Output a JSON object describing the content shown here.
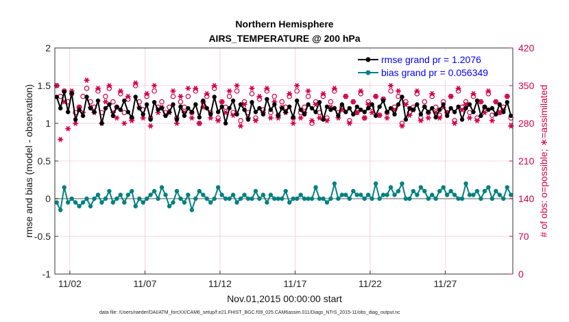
{
  "chart_data": {
    "type": "line",
    "title": "Northern Hemisphere",
    "subtitle": "AIRS_TEMPERATURE @ 200 hPa",
    "xlabel": "Nov.01,2015 00:00:00 start",
    "ylabel": "rmse and bias (model - observation)",
    "ylabel_right": "# of obs: o=possible; ∗=assimilated",
    "ylim": [
      -1,
      2
    ],
    "ylim_right": [
      0,
      420
    ],
    "xlim": [
      0,
      30.5
    ],
    "yticks": [
      "-1",
      "-0.5",
      "0",
      "0.5",
      "1",
      "1.5",
      "2"
    ],
    "yticks_right": [
      "0",
      "70",
      "140",
      "210",
      "280",
      "350",
      "420"
    ],
    "xticks": [
      {
        "value": 1,
        "label": "11/02"
      },
      {
        "value": 6,
        "label": "11/07"
      },
      {
        "value": 11,
        "label": "11/12"
      },
      {
        "value": 16,
        "label": "11/17"
      },
      {
        "value": 21,
        "label": "11/22"
      },
      {
        "value": 26,
        "label": "11/27"
      }
    ],
    "grid": true,
    "legend_position": "top-right",
    "x_step_days": 0.25,
    "series": [
      {
        "name": "rmse grand pr = 1.2076",
        "color": "#000000",
        "marker": "circle",
        "axis": "left",
        "values": [
          1.35,
          1.2,
          1.42,
          1.15,
          1.4,
          1.05,
          1.18,
          1.1,
          1.35,
          1.2,
          1.15,
          1.3,
          1.0,
          1.2,
          1.25,
          1.1,
          1.22,
          1.18,
          1.3,
          1.15,
          1.08,
          1.35,
          1.2,
          1.12,
          1.25,
          1.05,
          1.28,
          1.18,
          1.2,
          1.1,
          1.15,
          1.25,
          1.05,
          1.22,
          1.1,
          1.2,
          1.15,
          1.25,
          1.08,
          1.3,
          1.2,
          1.12,
          1.35,
          1.15,
          1.22,
          1.0,
          1.2,
          1.3,
          1.12,
          1.25,
          1.18,
          1.05,
          1.28,
          1.15,
          1.2,
          1.12,
          1.32,
          1.18,
          1.25,
          1.1,
          1.2,
          1.15,
          1.22,
          1.08,
          1.3,
          1.18,
          1.12,
          1.25,
          1.2,
          1.15,
          1.28,
          1.05,
          1.22,
          1.18,
          1.2,
          1.1,
          1.25,
          1.15,
          1.2,
          1.12,
          1.22,
          1.18,
          1.15,
          1.2,
          1.25,
          1.1,
          1.22,
          1.3,
          1.15,
          1.2,
          1.12,
          1.25,
          1.35,
          1.05,
          1.2,
          1.18,
          1.25,
          1.12,
          1.22,
          1.15,
          1.2,
          1.08,
          1.18,
          1.25,
          1.1,
          1.2,
          1.15,
          1.22,
          1.05,
          1.2,
          1.25,
          1.15,
          1.3,
          1.1,
          1.22,
          1.18,
          1.2,
          1.12,
          1.25,
          1.15,
          1.28,
          1.1,
          1.2,
          1.18,
          1.35,
          1.12,
          1.22,
          1.15,
          1.25,
          1.1,
          1.2,
          1.3,
          1.15,
          1.22,
          1.38,
          1.25,
          1.3,
          1.2,
          1.35,
          1.15,
          1.28,
          1.4,
          1.22,
          1.48,
          1.2,
          1.35,
          1.25,
          1.3,
          1.15,
          1.4,
          1.22,
          1.28,
          1.32,
          1.2,
          1.25,
          1.1,
          1.3,
          1.22,
          1.28,
          1.35,
          1.05,
          1.2,
          1.15,
          1.25,
          1.1,
          1.28,
          1.22,
          1.3,
          1.18,
          1.25,
          1.32,
          1.15,
          1.22,
          1.0,
          1.2,
          1.05,
          1.25,
          1.15,
          1.2,
          1.12,
          1.22,
          1.18,
          1.25,
          1.2,
          1.15,
          1.22,
          1.18,
          1.25,
          1.2,
          1.22,
          1.25,
          1.24
        ]
      },
      {
        "name": "bias grand pr = 0.056349",
        "color": "#008080",
        "marker": "circle",
        "axis": "left",
        "values": [
          -0.05,
          -0.15,
          0.15,
          -0.05,
          0.0,
          -0.05,
          -0.1,
          -0.05,
          0.0,
          -0.1,
          0.0,
          0.05,
          -0.05,
          0.0,
          0.1,
          -0.05,
          0.0,
          0.05,
          -0.05,
          0.05,
          0.1,
          -0.1,
          0.0,
          -0.05,
          0.0,
          0.05,
          0.1,
          0.0,
          0.15,
          0.05,
          -0.1,
          -0.05,
          0.1,
          0.0,
          -0.05,
          0.05,
          -0.15,
          0.0,
          0.1,
          0.05,
          0.0,
          -0.05,
          0.0,
          0.15,
          0.05,
          0.0,
          0.0,
          0.05,
          -0.05,
          0.0,
          0.05,
          0.0,
          0.0,
          0.1,
          0.0,
          0.05,
          -0.05,
          0.05,
          0.0,
          0.0,
          0.0,
          0.1,
          -0.05,
          0.0,
          0.0,
          0.05,
          0.0,
          0.0,
          0.0,
          0.15,
          0.0,
          0.0,
          -0.05,
          0.0,
          0.2,
          0.0,
          0.05,
          0.05,
          0.0,
          0.1,
          0.05,
          0.05,
          0.0,
          0.05,
          0.0,
          0.2,
          0.0,
          0.05,
          0.05,
          0.15,
          0.05,
          0.1,
          0.2,
          0.0,
          0.0,
          0.1,
          0.05,
          0.15,
          0.1,
          0.0,
          0.05,
          0.0,
          0.1,
          0.15,
          0.05,
          0.1,
          0.05,
          0.0,
          0.0,
          0.2,
          0.05,
          0.05,
          0.1,
          0.0,
          0.1,
          0.15,
          0.0,
          0.1,
          0.05,
          0.0,
          0.15,
          0.05,
          0.05,
          0.25,
          0.1,
          0.0,
          0.05,
          0.15,
          0.1,
          -0.05,
          0.15,
          0.05,
          0.1,
          0.05,
          0.0,
          0.15,
          -0.05,
          0.05,
          0.15,
          0.0,
          0.1,
          0.05,
          0.0,
          0.1,
          0.15,
          0.05,
          0.0,
          0.15,
          0.1,
          -0.15,
          0.05,
          0.0,
          0.15,
          0.1,
          0.05,
          0.0,
          0.0,
          0.1,
          0.05,
          0.05,
          0.0,
          0.1,
          0.05,
          0.1,
          0.15,
          0.05,
          0.0,
          0.1,
          0.05,
          0.15,
          0.25,
          0.1,
          0.15,
          0.05,
          0.0,
          0.15,
          0.05,
          0.0,
          0.1,
          0.1,
          -0.05,
          0.0,
          0.05,
          0.0,
          0.1,
          0.1,
          0.05,
          0.0,
          0.05,
          0.0,
          0.1,
          0.1,
          0.05,
          0.05
        ]
      }
    ],
    "obs_series": [
      {
        "name": "possible",
        "marker": "o",
        "color": "#d4004c",
        "axis": "right",
        "values": [
          350,
          330,
          340,
          320,
          335,
          300,
          310,
          330,
          345,
          320,
          310,
          340,
          300,
          330,
          345,
          320,
          310,
          335,
          300,
          325,
          290,
          350,
          320,
          305,
          330,
          290,
          340,
          310,
          320,
          300,
          310,
          330,
          290,
          320,
          310,
          330,
          300,
          340,
          280,
          320,
          330,
          300,
          345,
          290,
          320,
          310,
          330,
          300,
          340,
          285,
          320,
          300,
          335,
          290,
          325,
          305,
          340,
          300,
          330,
          295,
          320,
          310,
          330,
          290,
          340,
          300,
          310,
          330,
          280,
          320,
          300,
          330,
          290,
          320,
          340,
          300,
          310,
          330,
          285,
          320,
          300,
          335,
          290,
          320,
          310,
          330,
          295,
          325,
          300,
          340,
          310,
          330,
          280,
          320,
          300,
          310,
          335,
          290,
          320,
          300,
          330,
          310,
          295,
          320,
          300,
          330,
          285,
          340,
          310,
          320,
          300,
          330,
          290,
          320,
          310,
          335,
          295,
          320,
          300,
          310,
          330,
          290,
          320,
          305,
          335,
          300,
          320,
          290,
          330,
          310,
          320,
          300,
          340,
          310,
          320,
          300,
          330,
          280,
          320,
          300,
          310,
          330,
          290,
          340,
          310,
          320,
          300,
          330,
          285,
          310,
          320,
          300,
          340,
          310,
          335,
          300,
          320,
          280,
          310,
          320,
          300,
          330,
          310,
          300,
          320,
          290,
          330,
          310,
          320,
          300,
          315,
          340,
          305,
          320,
          295,
          330,
          310,
          320,
          300,
          320,
          310,
          330,
          300,
          320,
          310,
          330,
          300,
          350,
          310,
          320,
          300
        ]
      },
      {
        "name": "assimilated",
        "marker": "*",
        "color": "#d4004c",
        "axis": "right",
        "values": [
          350,
          250,
          320,
          270,
          340,
          280,
          310,
          300,
          360,
          310,
          300,
          345,
          280,
          320,
          350,
          300,
          290,
          340,
          280,
          330,
          285,
          355,
          310,
          290,
          335,
          275,
          350,
          300,
          310,
          295,
          300,
          340,
          280,
          330,
          300,
          345,
          290,
          345,
          280,
          310,
          335,
          290,
          350,
          285,
          320,
          300,
          340,
          295,
          350,
          275,
          315,
          290,
          345,
          285,
          330,
          300,
          345,
          290,
          320,
          290,
          310,
          300,
          335,
          280,
          350,
          290,
          300,
          340,
          285,
          315,
          290,
          335,
          285,
          310,
          345,
          290,
          305,
          330,
          280,
          320,
          300,
          340,
          290,
          315,
          300,
          330,
          295,
          325,
          290,
          350,
          305,
          340,
          275,
          315,
          295,
          305,
          340,
          285,
          310,
          290,
          335,
          300,
          290,
          310,
          300,
          330,
          280,
          345,
          305,
          315,
          290,
          335,
          285,
          320,
          300,
          340,
          285,
          320,
          300,
          305,
          330,
          275,
          315,
          300,
          340,
          295,
          315,
          280,
          335,
          305,
          315,
          290,
          350,
          300,
          315,
          290,
          325,
          270,
          320,
          295,
          305,
          330,
          285,
          345,
          305,
          320,
          295,
          330,
          280,
          305,
          315,
          290,
          345,
          300,
          335,
          295,
          315,
          275,
          305,
          320,
          295,
          335,
          305,
          290,
          315,
          260,
          330,
          300,
          310,
          290,
          310,
          345,
          300,
          320,
          260,
          320,
          305,
          310,
          290,
          305,
          300,
          320,
          290,
          310,
          300,
          325,
          290,
          280,
          305,
          315,
          350
        ]
      }
    ],
    "zero_line": 0
  },
  "footnote": "data file: /Users/raeder/DAI/ATM_forcXX/CAM6_setup/f.e21.FHIST_BGC.f09_025.CAM6assim.011/Diags_NTrS_2015-11/obs_diag_output.nc",
  "colors": {
    "rmse": "#000000",
    "bias": "#008080",
    "obs": "#d4004c",
    "legend_text": "#0000ff",
    "zero_line": "#aaaaaa"
  }
}
